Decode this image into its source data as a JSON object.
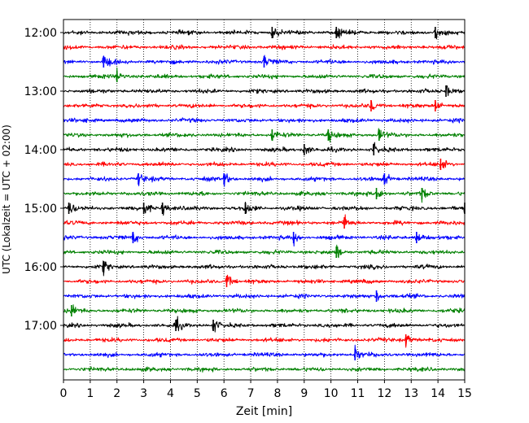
{
  "chart_data": {
    "type": "line",
    "xlabel": "Zeit  [min]",
    "ylabel": "UTC (Lokalzeit = UTC + 02:00)",
    "xlim": [
      0,
      15
    ],
    "x_ticks": [
      0,
      1,
      2,
      3,
      4,
      5,
      6,
      7,
      8,
      9,
      10,
      11,
      12,
      13,
      14,
      15
    ],
    "x_tick_labels": [
      "0",
      "1",
      "2",
      "3",
      "4",
      "5",
      "6",
      "7",
      "8",
      "9",
      "10",
      "11",
      "12",
      "13",
      "14",
      "15"
    ],
    "grid": "vertical-dotted",
    "row_interval_minutes": 15,
    "row_colors": [
      "#000000",
      "#ff0000",
      "#0000ff",
      "#008000"
    ],
    "y_tick_labels": [
      "12:00",
      "13:00",
      "14:00",
      "15:00",
      "16:00",
      "17:00"
    ],
    "rows": [
      {
        "time": "12:00",
        "events": [
          7.8,
          10.2,
          13.9
        ]
      },
      {
        "time": "12:15",
        "events": []
      },
      {
        "time": "12:30",
        "events": [
          1.5,
          7.5
        ]
      },
      {
        "time": "12:45",
        "events": [
          2.0
        ]
      },
      {
        "time": "13:00",
        "events": [
          14.3
        ]
      },
      {
        "time": "13:15",
        "events": [
          11.5,
          13.9
        ]
      },
      {
        "time": "13:30",
        "events": []
      },
      {
        "time": "13:45",
        "events": [
          7.8,
          9.9,
          11.8
        ]
      },
      {
        "time": "14:00",
        "events": [
          9.0,
          11.6
        ]
      },
      {
        "time": "14:15",
        "events": [
          14.1
        ]
      },
      {
        "time": "14:30",
        "events": [
          2.8,
          6.0,
          12.0
        ]
      },
      {
        "time": "14:45",
        "events": [
          11.7,
          13.4
        ]
      },
      {
        "time": "15:00",
        "events": [
          0.2,
          3.0,
          3.7,
          6.8,
          15.0
        ]
      },
      {
        "time": "15:15",
        "events": [
          10.5
        ]
      },
      {
        "time": "15:30",
        "events": [
          2.6,
          8.6,
          13.2
        ]
      },
      {
        "time": "15:45",
        "events": [
          10.2
        ]
      },
      {
        "time": "16:00",
        "events": [
          1.5
        ]
      },
      {
        "time": "16:15",
        "events": [
          6.1
        ]
      },
      {
        "time": "16:30",
        "events": [
          11.7
        ]
      },
      {
        "time": "16:45",
        "events": [
          0.3
        ]
      },
      {
        "time": "17:00",
        "events": [
          4.2,
          5.6
        ]
      },
      {
        "time": "17:15",
        "events": [
          12.8
        ]
      },
      {
        "time": "17:30",
        "events": [
          10.9
        ]
      },
      {
        "time": "17:45",
        "events": []
      }
    ]
  }
}
